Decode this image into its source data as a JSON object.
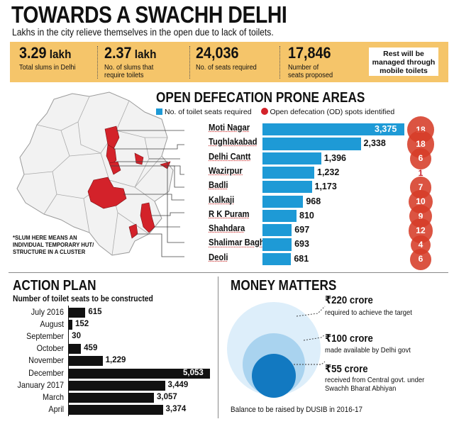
{
  "header": {
    "title": "TOWARDS A SWACHH DELHI",
    "subtitle": "Lakhs in the city relieve themselves in the open due to lack of toilets."
  },
  "stats": [
    {
      "value": "3.29",
      "unit": " lakh",
      "label": "Total slums in Delhi"
    },
    {
      "value": "2.37",
      "unit": " lakh",
      "label": "No. of slums that\nrequire toilets"
    },
    {
      "value": "24,036",
      "unit": "",
      "label": "No. of seats required"
    },
    {
      "value": "17,846",
      "unit": "",
      "label": "Number of\nseats proposed"
    }
  ],
  "rest_note": "Rest will be managed through mobile toilets",
  "colors": {
    "bar_blue": "#1e9ad6",
    "od_red": "#d3222a",
    "stat_band": "#f5c56a",
    "map_red": "#d3222a",
    "plan_bar": "#111111"
  },
  "map_note": "*SLUM HERE MEANS AN\nINDIVIDUAL TEMPORARY HUT/\nSTRUCTURE IN A CLUSTER",
  "chart_data": [
    {
      "type": "bar",
      "title": "OPEN DEFECATION PRONE AREAS",
      "legend": [
        "No. of toilet seats required",
        "Open defecation (OD) spots identified"
      ],
      "legend_placement": "top",
      "categories": [
        "Moti Nagar",
        "Tughlakabad",
        "Delhi Cantt",
        "Wazirpur",
        "Badli",
        "Kalkaji",
        "R K Puram",
        "Shahdara",
        "Shalimar Bagh",
        "Deoli"
      ],
      "series": [
        {
          "name": "No. of toilet seats required",
          "values": [
            3375,
            2338,
            1396,
            1232,
            1173,
            968,
            810,
            697,
            693,
            681
          ],
          "labels": [
            "3,375",
            "2,338",
            "1,396",
            "1,232",
            "1,173",
            "968",
            "810",
            "697",
            "693",
            "681"
          ]
        },
        {
          "name": "Open defecation (OD) spots identified",
          "values": [
            18,
            18,
            6,
            1,
            7,
            10,
            9,
            12,
            4,
            6
          ]
        }
      ],
      "orientation": "horizontal"
    },
    {
      "type": "bar",
      "title": "ACTION PLAN",
      "subtitle": "Number of toilet seats to be constructed",
      "categories": [
        "July 2016",
        "August",
        "September",
        "October",
        "November",
        "December",
        "January 2017",
        "March",
        "April"
      ],
      "values": [
        615,
        152,
        30,
        459,
        1229,
        5053,
        3449,
        3057,
        3374
      ],
      "labels": [
        "615",
        "152",
        "30",
        "459",
        "1,229",
        "5,053",
        "3,449",
        "3,057",
        "3,374"
      ],
      "orientation": "horizontal"
    },
    {
      "type": "bubble",
      "title": "MONEY MATTERS",
      "items": [
        {
          "amount": "₹220 crore",
          "value": 220,
          "desc": "required to achieve the target"
        },
        {
          "amount": "₹100 crore",
          "value": 100,
          "desc": "made available by Delhi govt"
        },
        {
          "amount": "₹55 crore",
          "value": 55,
          "desc": "received from Central govt. under\nSwachh Bharat Abhiyan"
        }
      ],
      "footnote": "Balance to be raised by DUSIB in 2016-17"
    }
  ]
}
